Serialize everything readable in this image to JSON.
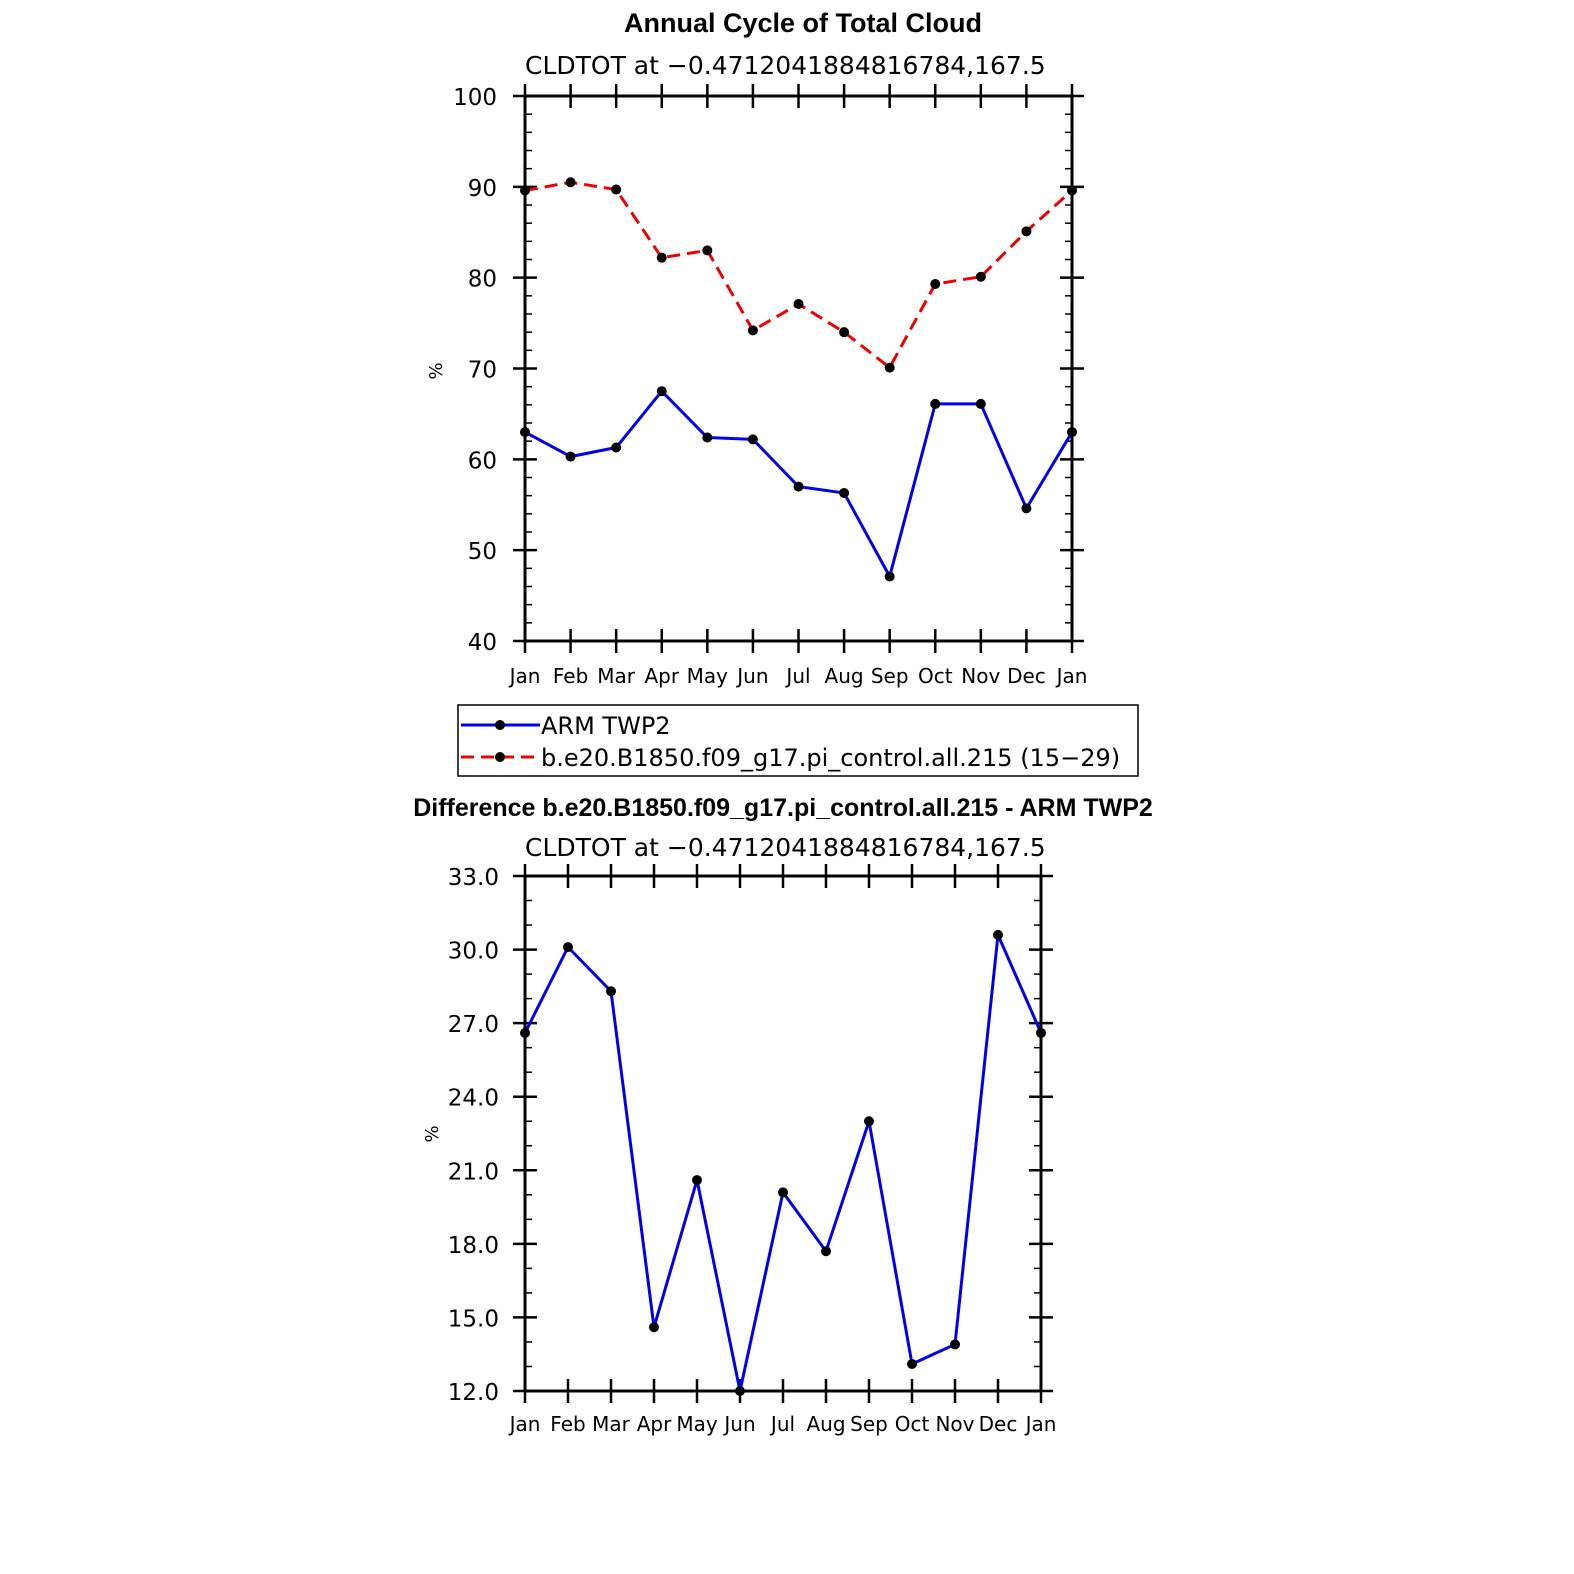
{
  "chart_data": [
    {
      "type": "line",
      "title": "Annual Cycle of Total Cloud",
      "subtitle": "CLDTOT at −0.4712041884816784,167.5",
      "xlabel": "",
      "ylabel": "%",
      "categories": [
        "Jan",
        "Feb",
        "Mar",
        "Apr",
        "May",
        "Jun",
        "Jul",
        "Aug",
        "Sep",
        "Oct",
        "Nov",
        "Dec",
        "Jan"
      ],
      "ylim": [
        40,
        100
      ],
      "yticks": [
        40,
        50,
        60,
        70,
        80,
        90,
        100
      ],
      "ytick_labels": [
        "40",
        "50",
        "60",
        "70",
        "80",
        "90",
        "100"
      ],
      "grid": false,
      "legend_position": "bottom",
      "series": [
        {
          "name": "ARM TWP2",
          "color": "#0000ee",
          "dash": "solid",
          "values": [
            63.0,
            60.3,
            61.3,
            67.5,
            62.4,
            62.2,
            57.0,
            56.3,
            47.1,
            66.1,
            66.1,
            54.6,
            63.0
          ]
        },
        {
          "name": "b.e20.B1850.f09_g17.pi_control.all.215 (15−29)",
          "color": "#ee0000",
          "dash": "dashed",
          "values": [
            89.6,
            90.5,
            89.7,
            82.2,
            83.0,
            74.2,
            77.1,
            74.0,
            70.1,
            79.3,
            80.1,
            85.1,
            89.6
          ]
        }
      ]
    },
    {
      "type": "line",
      "title": "Difference b.e20.B1850.f09_g17.pi_control.all.215 - ARM TWP2",
      "subtitle": "CLDTOT at −0.4712041884816784,167.5",
      "xlabel": "",
      "ylabel": "%",
      "categories": [
        "Jan",
        "Feb",
        "Mar",
        "Apr",
        "May",
        "Jun",
        "Jul",
        "Aug",
        "Sep",
        "Oct",
        "Nov",
        "Dec",
        "Jan"
      ],
      "ylim": [
        12,
        33
      ],
      "yticks": [
        12,
        15,
        18,
        21,
        24,
        27,
        30,
        33
      ],
      "ytick_labels": [
        "12.0",
        "15.0",
        "18.0",
        "21.0",
        "24.0",
        "27.0",
        "30.0",
        "33.0"
      ],
      "grid": false,
      "series": [
        {
          "name": "Difference",
          "color": "#0000ee",
          "dash": "solid",
          "values": [
            26.6,
            30.1,
            28.3,
            14.6,
            20.6,
            12.0,
            20.1,
            17.7,
            23.0,
            13.1,
            13.9,
            30.6,
            26.6
          ]
        }
      ]
    }
  ]
}
